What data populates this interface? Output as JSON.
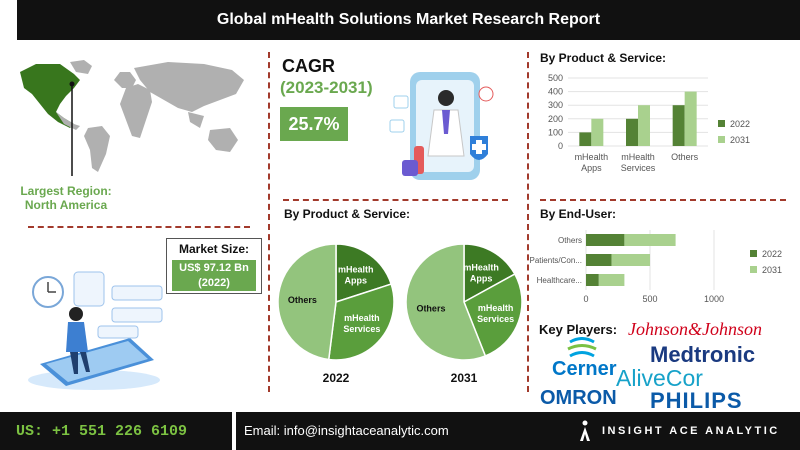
{
  "header": {
    "title": "Global mHealth Solutions Market Research Report"
  },
  "region": {
    "label_line1": "Largest Region:",
    "label_line2": "North America"
  },
  "cagr": {
    "title": "CAGR",
    "years": "(2023-2031)",
    "value": "25.7%"
  },
  "market_size": {
    "title": "Market Size:",
    "value_line1": "US$ 97.12 Bn",
    "value_line2": "(2022)"
  },
  "colors": {
    "dark_green": "#548235",
    "light_green": "#a9d18e",
    "accent_green": "#6aa84f",
    "divider": "#a23a2c"
  },
  "chart_data": [
    {
      "type": "bar",
      "title": "By Product & Service:",
      "categories": [
        "mHealth Apps",
        "mHealth Services",
        "Others"
      ],
      "category_lines": [
        [
          "mHealth",
          "Apps"
        ],
        [
          "mHealth",
          "Services"
        ],
        [
          "Others"
        ]
      ],
      "series": [
        {
          "name": "2022",
          "values": [
            100,
            200,
            300
          ]
        },
        {
          "name": "2031",
          "values": [
            200,
            300,
            400
          ]
        }
      ],
      "yticks": [
        "0",
        "100",
        "200",
        "300",
        "400",
        "500"
      ],
      "ylim": [
        0,
        500
      ],
      "legend": "right"
    },
    {
      "type": "pie",
      "title": "By Product & Service:",
      "charts": [
        {
          "label": "2022",
          "slices": [
            {
              "name": "mHealth Apps",
              "lines": [
                "mHealth",
                "Apps"
              ],
              "value": 20
            },
            {
              "name": "mHealth Services",
              "lines": [
                "mHealth",
                "Services"
              ],
              "value": 32
            },
            {
              "name": "Others",
              "lines": [
                "Others"
              ],
              "value": 48
            }
          ]
        },
        {
          "label": "2031",
          "slices": [
            {
              "name": "mHealth Apps",
              "lines": [
                "mHealth",
                "Apps"
              ],
              "value": 17
            },
            {
              "name": "mHealth Services",
              "lines": [
                "mHealth",
                "Services"
              ],
              "value": 27
            },
            {
              "name": "Others",
              "lines": [
                "Others"
              ],
              "value": 56
            }
          ]
        }
      ]
    },
    {
      "type": "bar",
      "orientation": "horizontal",
      "title": "By End-User:",
      "categories": [
        "Others",
        "Patients/Con...",
        "Healthcare..."
      ],
      "series": [
        {
          "name": "2022",
          "values": [
            300,
            200,
            100
          ]
        },
        {
          "name": "2031",
          "values": [
            400,
            300,
            200
          ]
        }
      ],
      "xticks": [
        "0",
        "500",
        "1000"
      ],
      "xlim": [
        0,
        1000
      ],
      "stacked": true,
      "legend": "right"
    }
  ],
  "key_players": {
    "title": "Key Players:",
    "logos": [
      "Johnson&Johnson",
      "Cerner",
      "Medtronic",
      "AliveCor",
      "OMRON",
      "PHILIPS"
    ]
  },
  "footer": {
    "phone": "US: +1 551 226 6109",
    "email": "Email: info@insightaceanalytic.com",
    "brand": "INSIGHT ACE ANALYTIC"
  }
}
